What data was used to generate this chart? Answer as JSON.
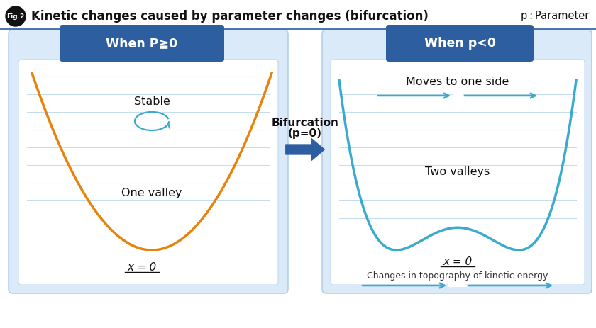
{
  "title": "Kinetic changes caused by parameter changes (bifurcation)",
  "fig_label": "Fig.2",
  "param_label": "p：Parameter",
  "bg_color": "#ffffff",
  "panel_outer_bg": "#daeaf8",
  "panel_inner_bg": "#ffffff",
  "header_color": "#2d5fa0",
  "header_text_color": "#ffffff",
  "left_header": "When P≧0",
  "right_header": "When p<0",
  "orange_color": "#e8820a",
  "blue_curve_color": "#3aaacf",
  "bifurcation_arrow_color": "#2d5fa0",
  "grid_color": "#c5ddef",
  "left_stable_text": "Stable",
  "left_valley_text": "One valley",
  "left_x0_text": "x = 0",
  "right_move_text": "Moves to one side",
  "right_valley_text": "Two valleys",
  "right_x0_text": "x = 0",
  "right_bottom_text": "Changes in topography of kinetic energy",
  "bifurcation_text1": "Bifurcation",
  "bifurcation_text2": "(p=0)"
}
